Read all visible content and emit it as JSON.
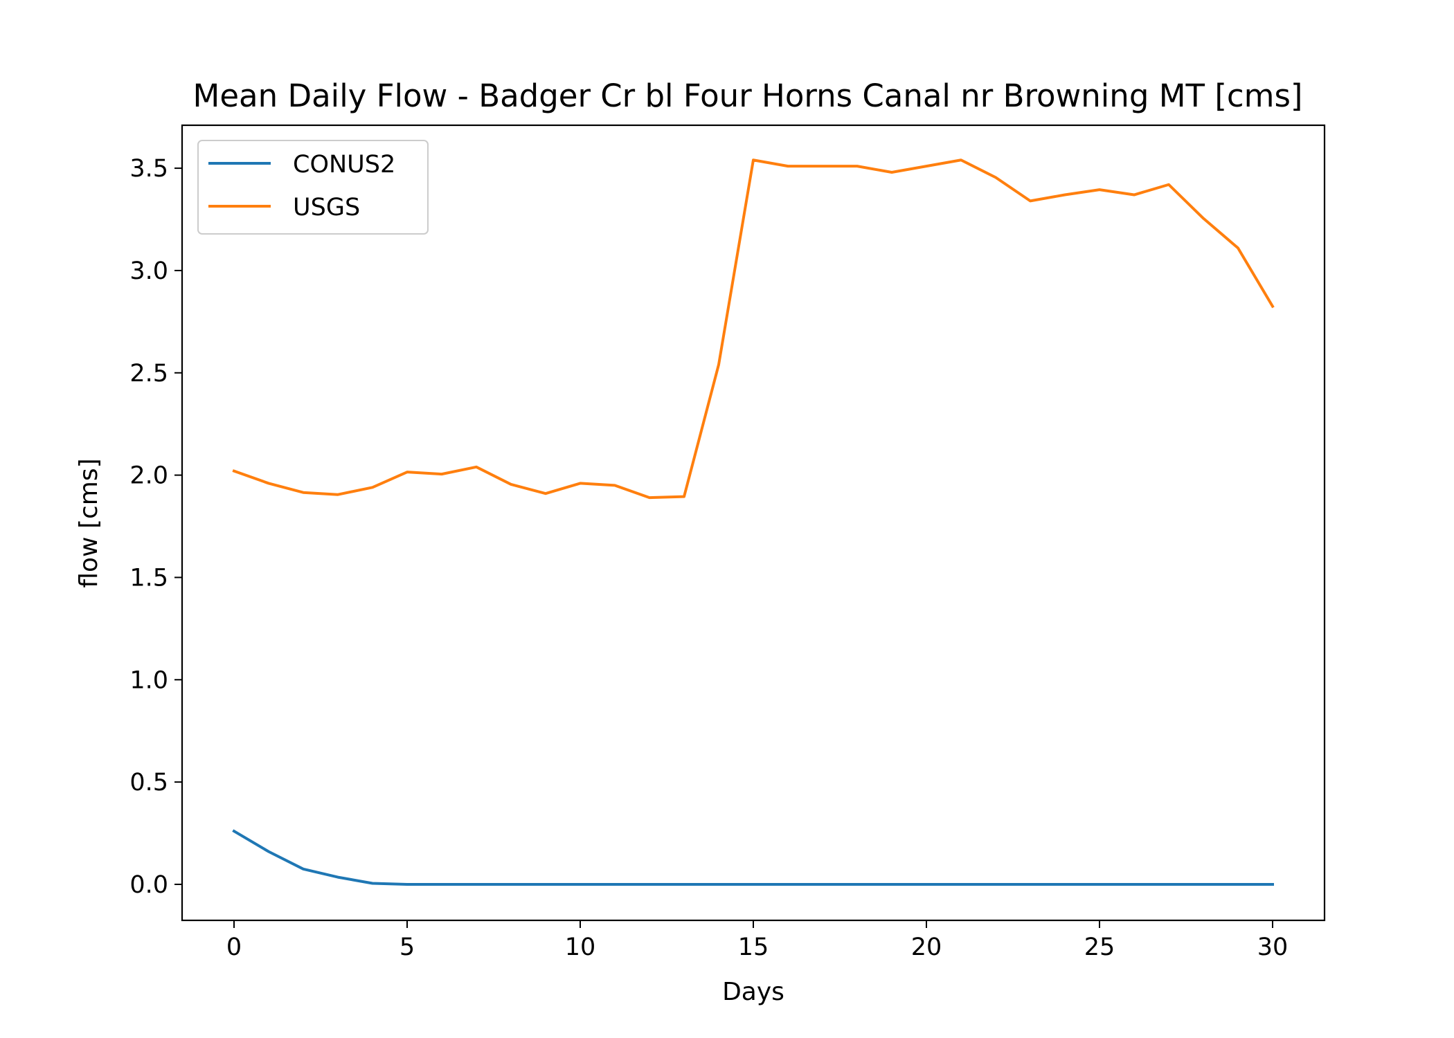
{
  "chart_data": {
    "type": "line",
    "title": "Mean Daily Flow - Badger Cr bl Four Horns Canal nr Browning MT [cms]",
    "xlabel": "Days",
    "ylabel": "flow [cms]",
    "xlim": [
      -1.5,
      31.5
    ],
    "ylim": [
      -0.176,
      3.71
    ],
    "xticks": [
      0,
      5,
      10,
      15,
      20,
      25,
      30
    ],
    "xtick_labels": [
      "0",
      "5",
      "10",
      "15",
      "20",
      "25",
      "30"
    ],
    "yticks": [
      0.0,
      0.5,
      1.0,
      1.5,
      2.0,
      2.5,
      3.0,
      3.5
    ],
    "ytick_labels": [
      "0.0",
      "0.5",
      "1.0",
      "1.5",
      "2.0",
      "2.5",
      "3.0",
      "3.5"
    ],
    "grid": false,
    "legend": "top-left",
    "x": [
      0,
      1,
      2,
      3,
      4,
      5,
      6,
      7,
      8,
      9,
      10,
      11,
      12,
      13,
      14,
      15,
      16,
      17,
      18,
      19,
      20,
      21,
      22,
      23,
      24,
      25,
      26,
      27,
      28,
      29,
      30
    ],
    "series": [
      {
        "name": "CONUS2",
        "color": "#1f77b4",
        "values": [
          0.26,
          0.16,
          0.075,
          0.035,
          0.005,
          0,
          0,
          0,
          0,
          0,
          0,
          0,
          0,
          0,
          0,
          0,
          0,
          0,
          0,
          0,
          0,
          0,
          0,
          0,
          0,
          0,
          0,
          0,
          0,
          0,
          0
        ]
      },
      {
        "name": "USGS",
        "color": "#ff7f0e",
        "values": [
          2.02,
          1.96,
          1.915,
          1.905,
          1.94,
          2.015,
          2.005,
          2.04,
          1.955,
          1.91,
          1.96,
          1.95,
          1.89,
          1.895,
          2.54,
          3.54,
          3.51,
          3.51,
          3.51,
          3.48,
          3.51,
          3.54,
          3.455,
          3.34,
          3.37,
          3.395,
          3.37,
          3.42,
          3.255,
          3.11,
          2.825
        ]
      }
    ]
  }
}
